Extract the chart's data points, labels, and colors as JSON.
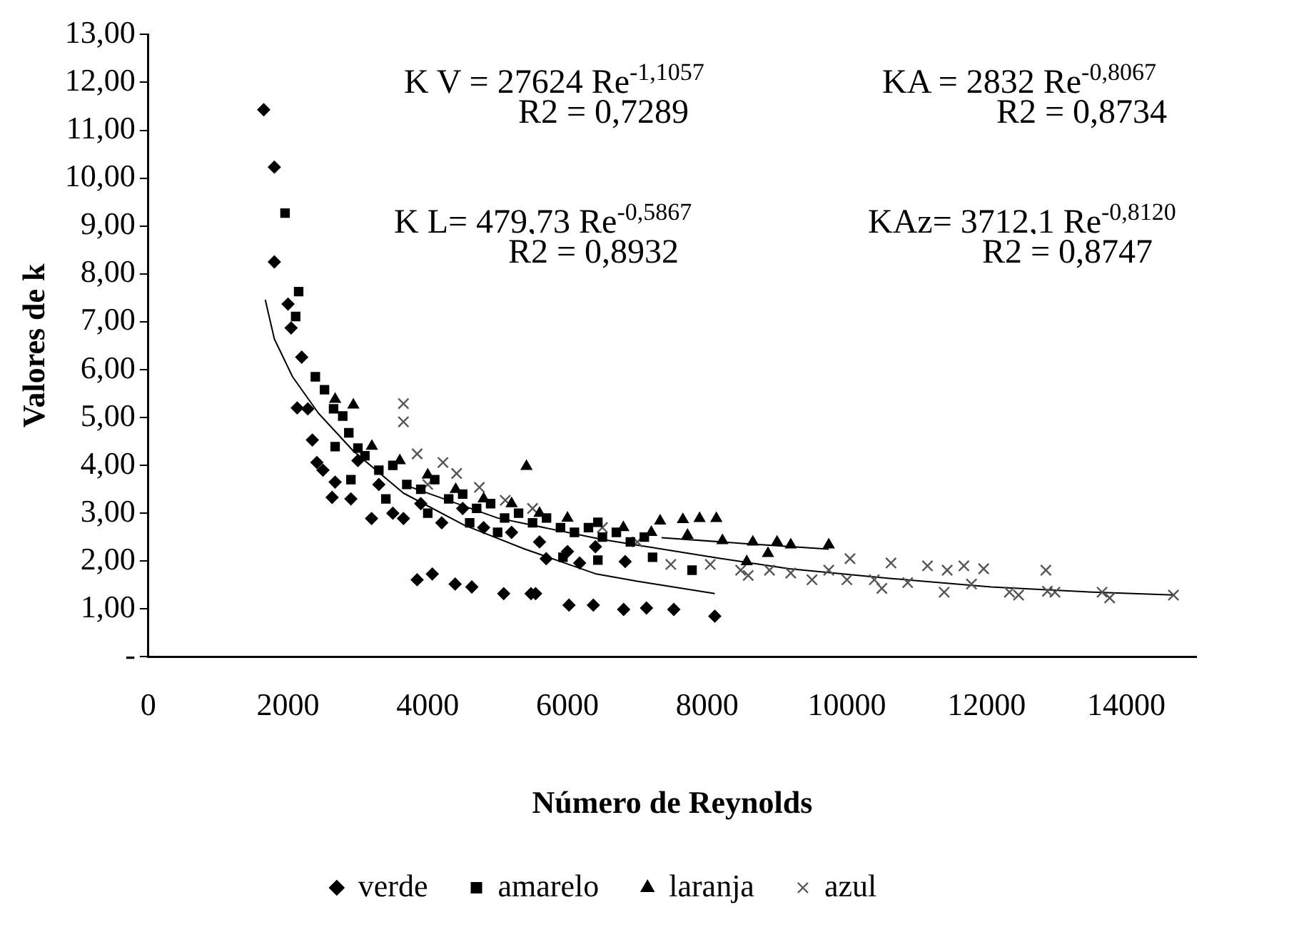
{
  "chart_data": {
    "type": "scatter",
    "xlabel": "Número de Reynolds",
    "ylabel": "Valores de k",
    "xlim": [
      0,
      15000
    ],
    "xticks": [
      0,
      2000,
      4000,
      6000,
      8000,
      10000,
      12000,
      14000
    ],
    "ylim": [
      0,
      13
    ],
    "yticks": [
      {
        "value": 0,
        "label": "-"
      },
      {
        "value": 1,
        "label": "1,00"
      },
      {
        "value": 2,
        "label": "2,00"
      },
      {
        "value": 3,
        "label": "3,00"
      },
      {
        "value": 4,
        "label": "4,00"
      },
      {
        "value": 5,
        "label": "5,00"
      },
      {
        "value": 6,
        "label": "6,00"
      },
      {
        "value": 7,
        "label": "7,00"
      },
      {
        "value": 8,
        "label": "8,00"
      },
      {
        "value": 9,
        "label": "9,00"
      },
      {
        "value": 10,
        "label": "10,00"
      },
      {
        "value": 11,
        "label": "11,00"
      },
      {
        "value": 12,
        "label": "12,00"
      },
      {
        "value": 13,
        "label": "13,00"
      }
    ],
    "grid": false,
    "legend": "bottom",
    "annotations": [
      "K V = 27624 Re$^{-1,1057}$",
      "R2 = 0,7289",
      "KA  = 2832 Re$^{-0,8067}$",
      "R2 = 0,8734",
      "K L= 479,73 Re$^{-0,5867}$",
      "R2 = 0,8932",
      "KAz= 3712,1 Re$^{-0,8120}$",
      "R2 = 0,8747"
    ],
    "series": [
      {
        "name": "verde",
        "color": "#000000",
        "marker": "diamond",
        "x": [
          1652,
          1804,
          1804,
          2000,
          2044,
          2196,
          2131,
          2283,
          2348,
          2413,
          2631,
          2674,
          3196,
          3652,
          3848,
          4065,
          4392,
          4631,
          5087,
          5478,
          6022,
          5696,
          6174,
          6826,
          5544,
          6370,
          6804,
          7131,
          7522,
          8109,
          2500,
          2900,
          3000,
          3300,
          3500,
          3900,
          4200,
          4500,
          4800,
          5200,
          5600,
          6000,
          6400
        ],
        "values": [
          11.43,
          10.23,
          8.25,
          7.37,
          6.87,
          6.26,
          5.2,
          5.18,
          4.53,
          4.06,
          3.33,
          3.65,
          2.89,
          2.89,
          1.61,
          1.73,
          1.52,
          1.46,
          1.32,
          1.32,
          1.08,
          2.05,
          1.96,
          1.99,
          1.32,
          1.08,
          0.99,
          1.02,
          0.99,
          0.85,
          3.9,
          3.3,
          4.1,
          3.6,
          3.0,
          3.2,
          2.8,
          3.1,
          2.7,
          2.6,
          2.4,
          2.2,
          2.3
        ]
      },
      {
        "name": "amarelo",
        "color": "#000000",
        "marker": "square",
        "x": [
          1957,
          2152,
          2109,
          2391,
          2522,
          2652,
          2783,
          2870,
          2674,
          3000,
          3100,
          3300,
          3500,
          3700,
          3900,
          4100,
          4300,
          4500,
          4700,
          4900,
          5100,
          5300,
          5500,
          5700,
          5900,
          6100,
          6300,
          6500,
          6700,
          6900,
          7100,
          2900,
          3400,
          4000,
          4600,
          5000,
          5935,
          6435,
          7218,
          7783,
          6435
        ],
        "values": [
          9.27,
          7.63,
          7.11,
          5.85,
          5.58,
          5.18,
          5.03,
          4.68,
          4.39,
          4.36,
          4.2,
          3.9,
          4.0,
          3.6,
          3.5,
          3.7,
          3.3,
          3.4,
          3.1,
          3.2,
          2.9,
          3.0,
          2.8,
          2.9,
          2.7,
          2.6,
          2.7,
          2.5,
          2.6,
          2.4,
          2.5,
          3.7,
          3.3,
          3.0,
          2.8,
          2.6,
          2.08,
          2.02,
          2.08,
          1.81,
          2.81
        ]
      },
      {
        "name": "laranja",
        "color": "#000000",
        "marker": "triangle",
        "x": [
          2674,
          2935,
          5413,
          3200,
          3600,
          4000,
          4400,
          4800,
          5200,
          5600,
          6000,
          6800,
          7200,
          7326,
          7652,
          7891,
          8131,
          7718,
          8218,
          8566,
          8653,
          9000,
          9196,
          9740,
          8870
        ],
        "values": [
          5.38,
          5.26,
          3.98,
          4.4,
          4.1,
          3.8,
          3.5,
          3.3,
          3.2,
          3.0,
          2.9,
          2.7,
          2.6,
          2.84,
          2.87,
          2.89,
          2.89,
          2.54,
          2.43,
          1.99,
          2.4,
          2.4,
          2.34,
          2.34,
          2.16
        ]
      },
      {
        "name": "azul",
        "color": "#555555",
        "marker": "cross",
        "x": [
          3652,
          3652,
          3848,
          4218,
          4413,
          4739,
          5109,
          4000,
          5500,
          6500,
          7000,
          7479,
          8044,
          8479,
          8587,
          8892,
          9196,
          9500,
          9740,
          10044,
          10000,
          10392,
          10500,
          10631,
          10870,
          11153,
          11392,
          11435,
          11674,
          11783,
          11957,
          12326,
          12457,
          12848,
          12870,
          12978,
          13652,
          13761,
          14674
        ],
        "values": [
          5.29,
          4.91,
          4.24,
          4.06,
          3.83,
          3.54,
          3.27,
          3.6,
          3.1,
          2.7,
          2.4,
          1.93,
          1.93,
          1.81,
          1.7,
          1.81,
          1.75,
          1.61,
          1.81,
          2.05,
          1.61,
          1.61,
          1.43,
          1.96,
          1.55,
          1.9,
          1.35,
          1.81,
          1.9,
          1.52,
          1.84,
          1.35,
          1.29,
          1.81,
          1.37,
          1.35,
          1.35,
          1.23,
          1.29
        ]
      },
      {
        "type": "line",
        "color": "#000000",
        "marker": "none",
        "x": [
          1674,
          1804,
          2065,
          2435,
          2935,
          3652,
          4522,
          5391,
          6413,
          7000,
          8109
        ],
        "values": [
          7.46,
          6.64,
          5.85,
          5.09,
          4.3,
          3.42,
          2.75,
          2.25,
          1.73,
          1.58,
          1.32
        ]
      },
      {
        "type": "line",
        "color": "#000000",
        "marker": "none",
        "x": [
          3652,
          5000,
          6500,
          8218,
          9174,
          10609,
          12065,
          13522,
          14674
        ],
        "values": [
          3.6,
          2.9,
          2.45,
          2.05,
          1.84,
          1.64,
          1.46,
          1.35,
          1.29
        ]
      },
      {
        "type": "line",
        "color": "#000000",
        "marker": "none",
        "x": [
          7348,
          8500,
          9740
        ],
        "values": [
          2.49,
          2.37,
          2.25
        ]
      }
    ]
  }
}
